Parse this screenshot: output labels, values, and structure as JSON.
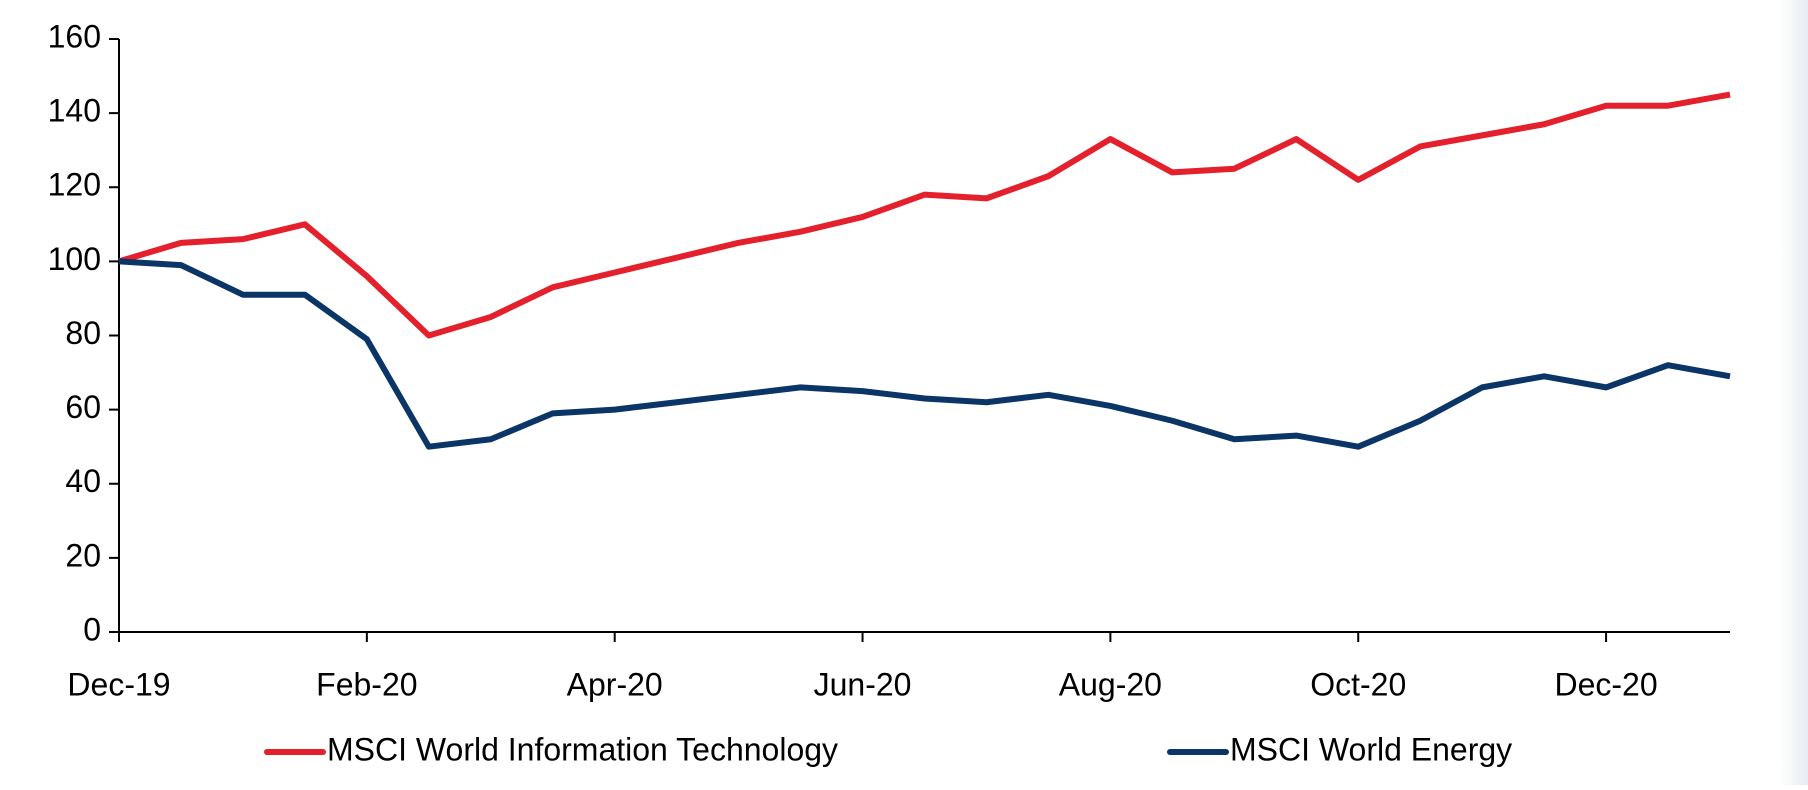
{
  "chart_data": {
    "type": "line",
    "categories": [
      "Dec-19",
      null,
      null,
      null,
      "Feb-20",
      null,
      null,
      null,
      "Apr-20",
      null,
      null,
      null,
      "Jun-20",
      null,
      null,
      null,
      "Aug-20",
      null,
      null,
      null,
      "Oct-20",
      null,
      null,
      null,
      "Dec-20",
      null,
      null
    ],
    "series": [
      {
        "name": "MSCI World Information Technology",
        "color": "#e3202b",
        "values": [
          100,
          105,
          106,
          110,
          96,
          80,
          85,
          93,
          97,
          101,
          105,
          108,
          112,
          118,
          117,
          123,
          133,
          124,
          125,
          133,
          122,
          131,
          134,
          137,
          142,
          142,
          145
        ]
      },
      {
        "name": "MSCI World Energy",
        "color": "#0b3566",
        "values": [
          100,
          99,
          91,
          91,
          79,
          50,
          52,
          59,
          60,
          62,
          64,
          66,
          65,
          63,
          62,
          64,
          61,
          57,
          52,
          53,
          50,
          57,
          66,
          69,
          66,
          72,
          69
        ]
      }
    ],
    "ylim": [
      0,
      160
    ],
    "yticks": [
      0,
      20,
      40,
      60,
      80,
      100,
      120,
      140,
      160
    ],
    "grid": false,
    "legend": "bottom"
  }
}
